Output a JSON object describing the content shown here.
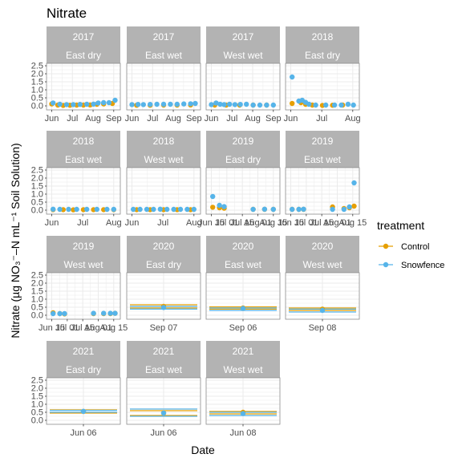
{
  "chart_data": {
    "type": "scatter",
    "title": "Nitrate",
    "xlabel": "Date",
    "ylabel": "Nitrate (µg NO₃⁻–N mL⁻¹ Soil Solution)",
    "ylim": [
      0,
      2.5
    ],
    "y_ticks": [
      "0.0",
      "0.5",
      "1.0",
      "1.5",
      "2.0",
      "2.5"
    ],
    "grid": true,
    "legend": {
      "title": "treatment",
      "placement": "right",
      "entries": [
        {
          "name": "Control",
          "color": "#E69F00"
        },
        {
          "name": "Snowfence",
          "color": "#56B4E9"
        }
      ]
    },
    "panels": [
      {
        "year": "2017",
        "site": "East dry",
        "x_ticks": [
          "Jun",
          "Jul",
          "Aug",
          "Sep"
        ],
        "series": [
          {
            "name": "Control",
            "points": [
              [
                0.03,
                0.12
              ],
              [
                0.12,
                0.05
              ],
              [
                0.2,
                0.03
              ],
              [
                0.3,
                0.04
              ],
              [
                0.4,
                0.05
              ],
              [
                0.5,
                0.05
              ],
              [
                0.6,
                0.06
              ],
              [
                0.7,
                0.1
              ],
              [
                0.8,
                0.12
              ],
              [
                0.93,
                0.15
              ]
            ]
          },
          {
            "name": "Snowfence",
            "points": [
              [
                0.05,
                0.18
              ],
              [
                0.15,
                0.1
              ],
              [
                0.25,
                0.08
              ],
              [
                0.35,
                0.08
              ],
              [
                0.45,
                0.09
              ],
              [
                0.55,
                0.1
              ],
              [
                0.65,
                0.11
              ],
              [
                0.72,
                0.18
              ],
              [
                0.8,
                0.2
              ],
              [
                0.88,
                0.2
              ],
              [
                0.97,
                0.35
              ]
            ]
          }
        ]
      },
      {
        "year": "2017",
        "site": "East wet",
        "x_ticks": [
          "Jun",
          "Jul",
          "Aug",
          "Sep"
        ],
        "series": [
          {
            "name": "Control",
            "points": [
              [
                0.1,
                0.04
              ],
              [
                0.3,
                0.04
              ],
              [
                0.5,
                0.05
              ],
              [
                0.7,
                0.05
              ],
              [
                0.9,
                0.06
              ]
            ]
          },
          {
            "name": "Snowfence",
            "points": [
              [
                0.03,
                0.08
              ],
              [
                0.12,
                0.09
              ],
              [
                0.2,
                0.08
              ],
              [
                0.3,
                0.09
              ],
              [
                0.4,
                0.1
              ],
              [
                0.5,
                0.1
              ],
              [
                0.6,
                0.1
              ],
              [
                0.7,
                0.1
              ],
              [
                0.8,
                0.12
              ],
              [
                0.9,
                0.13
              ],
              [
                0.97,
                0.15
              ]
            ]
          }
        ]
      },
      {
        "year": "2017",
        "site": "West wet",
        "x_ticks": [
          "Jun",
          "Jul",
          "Aug",
          "Sep"
        ],
        "series": [
          {
            "name": "Control",
            "points": [
              [
                0.08,
                0.05
              ],
              [
                0.25,
                0.05
              ],
              [
                0.45,
                0.05
              ],
              [
                0.65,
                0.05
              ],
              [
                0.85,
                0.05
              ]
            ]
          },
          {
            "name": "Snowfence",
            "points": [
              [
                0.03,
                0.08
              ],
              [
                0.1,
                0.18
              ],
              [
                0.16,
                0.1
              ],
              [
                0.22,
                0.08
              ],
              [
                0.3,
                0.1
              ],
              [
                0.38,
                0.08
              ],
              [
                0.46,
                0.09
              ],
              [
                0.55,
                0.1
              ],
              [
                0.65,
                0.05
              ],
              [
                0.75,
                0.05
              ],
              [
                0.85,
                0.05
              ],
              [
                0.95,
                0.05
              ]
            ]
          }
        ]
      },
      {
        "year": "2018",
        "site": "East dry",
        "x_ticks": [
          "Jun",
          "Jul",
          "Aug"
        ],
        "series": [
          {
            "name": "Control",
            "points": [
              [
                0.05,
                0.15
              ],
              [
                0.18,
                0.2
              ],
              [
                0.25,
                0.1
              ],
              [
                0.35,
                0.05
              ],
              [
                0.5,
                0.03
              ],
              [
                0.65,
                0.04
              ],
              [
                0.8,
                0.05
              ]
            ]
          },
          {
            "name": "Snowfence",
            "points": [
              [
                0.05,
                1.8
              ],
              [
                0.15,
                0.3
              ],
              [
                0.2,
                0.35
              ],
              [
                0.25,
                0.22
              ],
              [
                0.3,
                0.1
              ],
              [
                0.4,
                0.05
              ],
              [
                0.55,
                0.05
              ],
              [
                0.68,
                0.05
              ],
              [
                0.78,
                0.05
              ],
              [
                0.88,
                0.1
              ],
              [
                0.96,
                0.05
              ]
            ]
          }
        ]
      },
      {
        "year": "2018",
        "site": "East wet",
        "x_ticks": [
          "Jun",
          "Jul",
          "Aug"
        ],
        "series": [
          {
            "name": "Control",
            "points": [
              [
                0.05,
                0.03
              ],
              [
                0.2,
                0.03
              ],
              [
                0.35,
                0.02
              ],
              [
                0.5,
                0.03
              ],
              [
                0.65,
                0.03
              ],
              [
                0.8,
                0.03
              ],
              [
                0.95,
                0.03
              ]
            ]
          },
          {
            "name": "Snowfence",
            "points": [
              [
                0.05,
                0.06
              ],
              [
                0.15,
                0.05
              ],
              [
                0.28,
                0.05
              ],
              [
                0.4,
                0.05
              ],
              [
                0.55,
                0.05
              ],
              [
                0.7,
                0.05
              ],
              [
                0.85,
                0.05
              ],
              [
                0.95,
                0.05
              ]
            ]
          }
        ]
      },
      {
        "year": "2018",
        "site": "West wet",
        "x_ticks": [
          "Jun",
          "Jul",
          "Aug"
        ],
        "series": [
          {
            "name": "Control",
            "points": [
              [
                0.1,
                0.03
              ],
              [
                0.3,
                0.03
              ],
              [
                0.5,
                0.03
              ],
              [
                0.7,
                0.03
              ],
              [
                0.9,
                0.03
              ]
            ]
          },
          {
            "name": "Snowfence",
            "points": [
              [
                0.05,
                0.05
              ],
              [
                0.15,
                0.05
              ],
              [
                0.25,
                0.05
              ],
              [
                0.35,
                0.05
              ],
              [
                0.45,
                0.06
              ],
              [
                0.55,
                0.05
              ],
              [
                0.65,
                0.05
              ],
              [
                0.75,
                0.05
              ],
              [
                0.85,
                0.05
              ],
              [
                0.95,
                0.05
              ]
            ]
          }
        ]
      },
      {
        "year": "2019",
        "site": "East dry",
        "x_ticks": [
          "Jun 15",
          "Jul 01",
          "Jul 15",
          "Aug 01",
          "Aug 15"
        ],
        "series": [
          {
            "name": "Control",
            "points": [
              [
                0.05,
                0.18
              ],
              [
                0.15,
                0.15
              ],
              [
                0.22,
                0.12
              ],
              [
                0.65,
                0.05
              ],
              [
                0.82,
                0.05
              ],
              [
                0.95,
                0.05
              ]
            ]
          },
          {
            "name": "Snowfence",
            "points": [
              [
                0.05,
                0.85
              ],
              [
                0.15,
                0.3
              ],
              [
                0.22,
                0.22
              ],
              [
                0.65,
                0.05
              ],
              [
                0.82,
                0.06
              ],
              [
                0.95,
                0.05
              ]
            ]
          }
        ]
      },
      {
        "year": "2019",
        "site": "East wet",
        "x_ticks": [
          "Jun 15",
          "Jul 01",
          "Jul 15",
          "Aug 01",
          "Aug 15"
        ],
        "series": [
          {
            "name": "Control",
            "points": [
              [
                0.05,
                0.05
              ],
              [
                0.15,
                0.05
              ],
              [
                0.22,
                0.05
              ],
              [
                0.65,
                0.2
              ],
              [
                0.82,
                0.1
              ],
              [
                0.9,
                0.15
              ],
              [
                0.97,
                0.25
              ]
            ]
          },
          {
            "name": "Snowfence",
            "points": [
              [
                0.05,
                0.05
              ],
              [
                0.15,
                0.05
              ],
              [
                0.22,
                0.06
              ],
              [
                0.65,
                0.05
              ],
              [
                0.82,
                0.05
              ],
              [
                0.9,
                0.2
              ],
              [
                0.97,
                1.7
              ]
            ]
          }
        ]
      },
      {
        "year": "2019",
        "site": "West wet",
        "x_ticks": [
          "Jun 15",
          "Jul 01",
          "Jul 15",
          "Aug 01",
          "Aug 15"
        ],
        "series": [
          {
            "name": "Control",
            "points": [
              [
                0.05,
                0.15
              ],
              [
                0.15,
                0.1
              ],
              [
                0.22,
                0.08
              ],
              [
                0.65,
                0.1
              ],
              [
                0.8,
                0.1
              ],
              [
                0.9,
                0.1
              ],
              [
                0.97,
                0.12
              ]
            ]
          },
          {
            "name": "Snowfence",
            "points": [
              [
                0.05,
                0.1
              ],
              [
                0.15,
                0.1
              ],
              [
                0.22,
                0.1
              ],
              [
                0.65,
                0.12
              ],
              [
                0.8,
                0.12
              ],
              [
                0.9,
                0.12
              ],
              [
                0.97,
                0.12
              ]
            ]
          }
        ]
      },
      {
        "year": "2020",
        "site": "East dry",
        "x_ticks": [
          "Sep 07"
        ],
        "hlines": [
          {
            "series": "Control",
            "values": [
              0.65,
              0.45
            ]
          },
          {
            "series": "Snowfence",
            "values": [
              0.55,
              0.38
            ]
          }
        ],
        "series": [
          {
            "name": "Control",
            "points": [
              [
                0.5,
                0.55
              ]
            ]
          },
          {
            "name": "Snowfence",
            "points": [
              [
                0.5,
                0.48
              ]
            ]
          }
        ]
      },
      {
        "year": "2020",
        "site": "East wet",
        "x_ticks": [
          "Sep 06"
        ],
        "hlines": [
          {
            "series": "Control",
            "values": [
              0.52,
              0.38
            ]
          },
          {
            "series": "Snowfence",
            "values": [
              0.45,
              0.3
            ]
          }
        ],
        "series": [
          {
            "name": "Control",
            "points": [
              [
                0.5,
                0.45
              ]
            ]
          },
          {
            "name": "Snowfence",
            "points": [
              [
                0.5,
                0.42
              ]
            ]
          }
        ]
      },
      {
        "year": "2020",
        "site": "West wet",
        "x_ticks": [
          "Sep 08"
        ],
        "hlines": [
          {
            "series": "Control",
            "values": [
              0.45,
              0.3
            ]
          },
          {
            "series": "Snowfence",
            "values": [
              0.38,
              0.2
            ]
          }
        ],
        "series": [
          {
            "name": "Control",
            "points": [
              [
                0.5,
                0.38
              ]
            ]
          },
          {
            "name": "Snowfence",
            "points": [
              [
                0.5,
                0.3
              ]
            ]
          }
        ]
      },
      {
        "year": "2021",
        "site": "East dry",
        "x_ticks": [
          "Jun 06"
        ],
        "hlines": [
          {
            "series": "Control",
            "values": [
              0.65,
              0.45
            ]
          },
          {
            "series": "Snowfence",
            "values": [
              0.62,
              0.5
            ]
          }
        ],
        "series": [
          {
            "name": "Control",
            "points": [
              [
                0.5,
                0.55
              ]
            ]
          },
          {
            "name": "Snowfence",
            "points": [
              [
                0.5,
                0.56
              ]
            ]
          }
        ]
      },
      {
        "year": "2021",
        "site": "East wet",
        "x_ticks": [
          "Jun 06"
        ],
        "hlines": [
          {
            "series": "Control",
            "values": [
              0.6,
              0.3
            ]
          },
          {
            "series": "Snowfence",
            "values": [
              0.7,
              0.25
            ]
          }
        ],
        "series": [
          {
            "name": "Control",
            "points": [
              [
                0.5,
                0.45
              ]
            ]
          },
          {
            "name": "Snowfence",
            "points": [
              [
                0.5,
                0.45
              ]
            ]
          }
        ]
      },
      {
        "year": "2021",
        "site": "West wet",
        "x_ticks": [
          "Jun 08"
        ],
        "hlines": [
          {
            "series": "Control",
            "values": [
              0.55,
              0.4
            ]
          },
          {
            "series": "Snowfence",
            "values": [
              0.5,
              0.3
            ]
          }
        ],
        "series": [
          {
            "name": "Control",
            "points": [
              [
                0.5,
                0.5
              ]
            ]
          },
          {
            "name": "Snowfence",
            "points": [
              [
                0.5,
                0.42
              ]
            ]
          }
        ]
      }
    ]
  }
}
